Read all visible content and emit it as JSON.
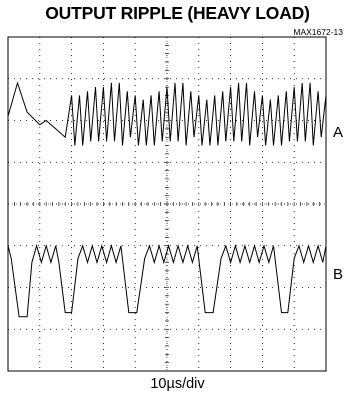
{
  "chart_data": {
    "type": "line",
    "title": "OUTPUT RIPPLE (HEAVY LOAD)",
    "figure_id": "MAX1672-13",
    "xlabel": "10µs/div",
    "grid": true,
    "x_divisions": 10,
    "y_divisions": 8,
    "series": [
      {
        "name": "A",
        "unit": "div",
        "x": [
          0.0,
          0.3,
          0.6,
          1.0,
          1.2,
          1.5,
          1.8,
          2.0,
          2.1,
          2.25,
          2.35,
          2.5,
          2.6,
          2.75,
          2.85,
          3.0,
          3.1,
          3.25,
          3.35,
          3.5,
          3.6,
          3.75,
          3.85,
          4.0,
          4.1,
          4.25,
          4.35,
          4.5,
          4.6,
          4.75,
          4.85,
          5.0,
          5.1,
          5.25,
          5.35,
          5.5,
          5.6,
          5.75,
          5.85,
          6.0,
          6.1,
          6.25,
          6.35,
          6.5,
          6.6,
          6.75,
          6.85,
          7.0,
          7.1,
          7.25,
          7.35,
          7.5,
          7.6,
          7.75,
          7.85,
          8.0,
          8.1,
          8.25,
          8.35,
          8.5,
          8.6,
          8.75,
          8.85,
          9.0,
          9.1,
          9.25,
          9.35,
          9.5,
          9.6,
          9.75,
          9.85,
          10.0
        ],
        "y": [
          6.1,
          6.9,
          6.2,
          5.9,
          6.0,
          5.8,
          5.6,
          6.6,
          5.4,
          6.6,
          5.4,
          6.7,
          5.5,
          6.8,
          5.5,
          6.8,
          5.5,
          6.9,
          5.5,
          6.9,
          5.4,
          6.7,
          5.6,
          6.6,
          5.4,
          6.5,
          5.4,
          6.6,
          5.4,
          6.7,
          5.5,
          6.8,
          5.5,
          6.9,
          5.5,
          6.9,
          5.4,
          6.7,
          5.6,
          6.6,
          5.4,
          6.5,
          5.4,
          6.6,
          5.4,
          6.7,
          5.5,
          6.8,
          5.5,
          6.9,
          5.5,
          6.9,
          5.4,
          6.7,
          5.6,
          6.6,
          5.4,
          6.5,
          5.4,
          6.6,
          5.4,
          6.7,
          5.5,
          6.8,
          5.5,
          6.9,
          5.5,
          6.9,
          5.4,
          6.7,
          5.6,
          6.6
        ]
      },
      {
        "name": "B",
        "unit": "div",
        "x": [
          0.0,
          0.1,
          0.35,
          0.6,
          0.75,
          0.9,
          1.05,
          1.2,
          1.35,
          1.5,
          1.6,
          1.8,
          2.0,
          2.2,
          2.35,
          2.5,
          2.65,
          2.8,
          2.95,
          3.1,
          3.25,
          3.4,
          3.55,
          3.8,
          4.05,
          4.3,
          4.45,
          4.6,
          4.75,
          4.9,
          5.05,
          5.2,
          5.35,
          5.5,
          5.65,
          5.8,
          5.95,
          6.2,
          6.45,
          6.7,
          6.85,
          7.0,
          7.15,
          7.3,
          7.45,
          7.6,
          7.75,
          7.9,
          8.05,
          8.2,
          8.35,
          8.6,
          8.8,
          9.0,
          9.15,
          9.3,
          9.45,
          9.6,
          9.75,
          9.9,
          10.0
        ],
        "y": [
          3.0,
          2.7,
          1.3,
          1.3,
          2.6,
          3.0,
          2.6,
          3.0,
          2.6,
          3.0,
          2.6,
          1.4,
          1.4,
          2.7,
          3.0,
          2.6,
          3.0,
          2.6,
          3.0,
          2.6,
          3.0,
          2.6,
          3.0,
          1.4,
          1.4,
          2.7,
          3.0,
          2.6,
          3.0,
          2.6,
          3.0,
          2.6,
          3.0,
          2.6,
          3.0,
          2.6,
          3.0,
          1.4,
          1.4,
          2.7,
          3.0,
          2.6,
          3.0,
          2.6,
          3.0,
          2.6,
          3.0,
          2.6,
          3.0,
          2.6,
          3.0,
          1.4,
          1.4,
          2.7,
          3.0,
          2.6,
          3.0,
          2.6,
          3.0,
          2.6,
          3.0
        ]
      }
    ]
  }
}
